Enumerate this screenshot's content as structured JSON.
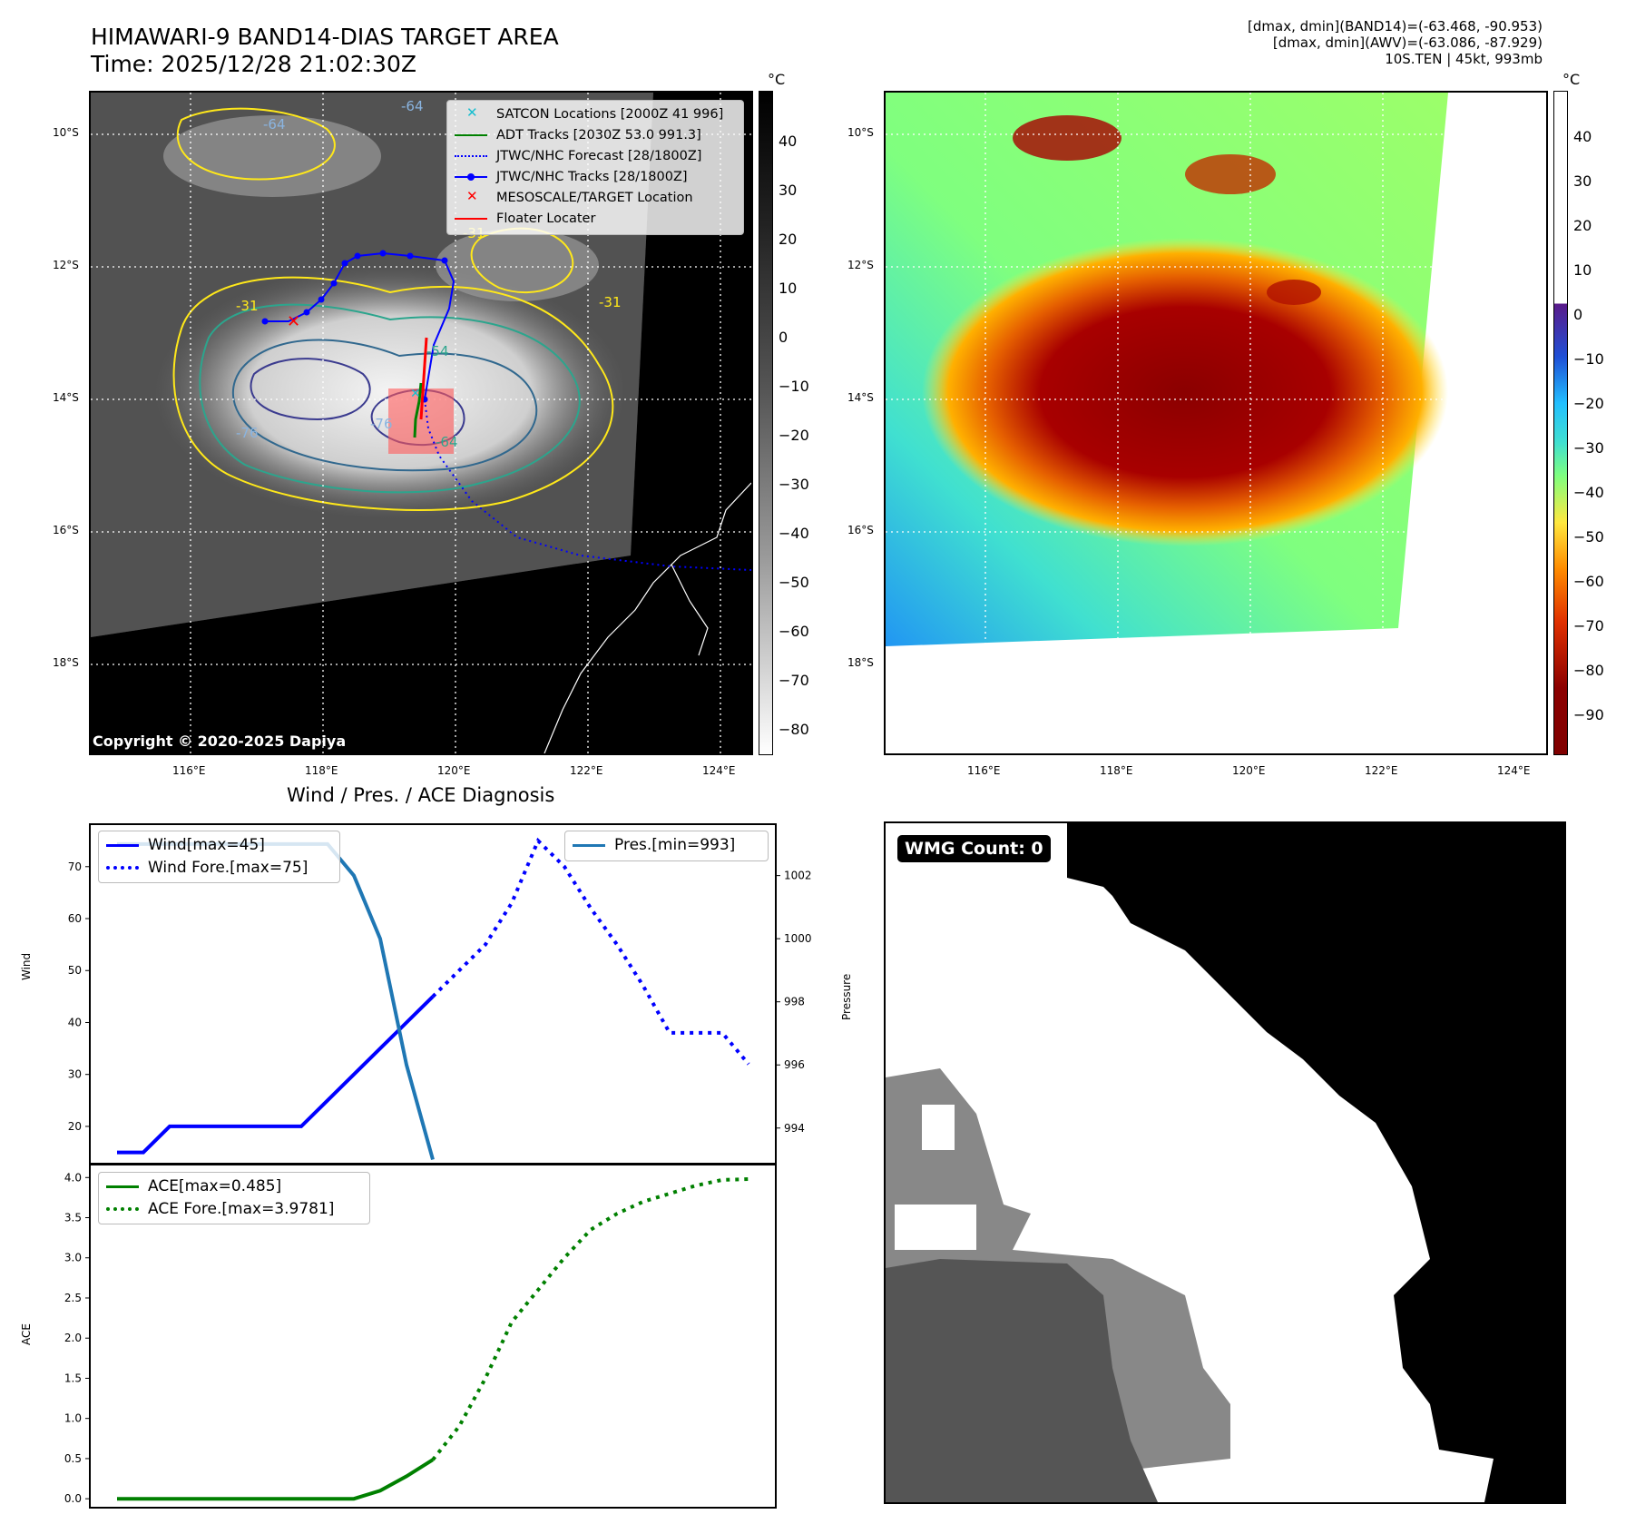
{
  "header": {
    "title_line1": "HIMAWARI-9 BAND14-DIAS TARGET AREA",
    "title_line2": "Time: 2025/12/28 21:02:30Z",
    "info_line1": "[dmax, dmin](BAND14)=(-63.468, -90.953)",
    "info_line2": "[dmax, dmin](AWV)=(-63.086, -87.929)",
    "info_line3": "10S.TEN | 45kt, 993mb"
  },
  "map": {
    "lat_labels": [
      "10°S",
      "12°S",
      "14°S",
      "16°S",
      "18°S"
    ],
    "lon_labels": [
      "116°E",
      "118°E",
      "120°E",
      "122°E",
      "124°E"
    ],
    "copyright": "Copyright © 2020-2025 Dapiya",
    "contour_labels": [
      "-76",
      "-76",
      "-64",
      "-64",
      "-54",
      "-64",
      "-31",
      "-31",
      "-31"
    ],
    "legend": [
      {
        "label": "SATCON Locations [2000Z 41 996]",
        "color": "#17becf",
        "style": "x-marker"
      },
      {
        "label": "ADT Tracks [2030Z 53.0 991.3]",
        "color": "#008000",
        "style": "line"
      },
      {
        "label": "JTWC/NHC Forecast [28/1800Z]",
        "color": "#0000ff",
        "style": "dotted"
      },
      {
        "label": "JTWC/NHC Tracks [28/1800Z]",
        "color": "#0000ff",
        "style": "line-dot"
      },
      {
        "label": "MESOSCALE/TARGET Location",
        "color": "#ff0000",
        "style": "x-marker"
      },
      {
        "label": "Floater Locater",
        "color": "#ff0000",
        "style": "line"
      }
    ]
  },
  "colorbar_left": {
    "unit": "°C",
    "ticks": [
      "40",
      "30",
      "20",
      "10",
      "0",
      "−10",
      "−20",
      "−30",
      "−40",
      "−50",
      "−60",
      "−70",
      "−80"
    ]
  },
  "colorbar_right": {
    "unit": "°C",
    "ticks": [
      "40",
      "30",
      "20",
      "10",
      "0",
      "−10",
      "−20",
      "−30",
      "−40",
      "−50",
      "−60",
      "−70",
      "−80",
      "−90"
    ]
  },
  "diag": {
    "title": "Wind / Pres. / ACE Diagnosis",
    "wind_ylabel": "Wind",
    "pres_ylabel": "Pressure",
    "ace_ylabel": "ACE",
    "wind_ticks": [
      "70",
      "60",
      "50",
      "40",
      "30",
      "20"
    ],
    "pres_ticks": [
      "1002",
      "1000",
      "998",
      "996",
      "994"
    ],
    "ace_ticks": [
      "4.0",
      "3.5",
      "3.0",
      "2.5",
      "2.0",
      "1.5",
      "1.0",
      "0.5",
      "0.0"
    ],
    "legend_wind": "Wind[max=45]",
    "legend_wind_fore": "Wind Fore.[max=75]",
    "legend_pres": "Pres.[min=993]",
    "legend_ace": "ACE[max=0.485]",
    "legend_ace_fore": "ACE Fore.[max=3.9781]"
  },
  "wmg": {
    "label": "WMG Count: 0"
  },
  "chart_data": [
    {
      "type": "line",
      "title": "Wind / Pres. / ACE Diagnosis",
      "ylabel": "Wind",
      "ylim": [
        13,
        78
      ],
      "series": [
        {
          "name": "Wind[max=45]",
          "x": [
            0,
            1,
            2,
            3,
            4,
            5,
            6,
            7,
            8,
            9,
            10,
            11,
            12,
            13
          ],
          "values": [
            15,
            15,
            20,
            20,
            20,
            20,
            20,
            20,
            25,
            30,
            35,
            40,
            45,
            null
          ],
          "color": "#0000ff",
          "style": "solid"
        },
        {
          "name": "Wind Fore.[max=75]",
          "x": [
            12,
            13,
            14,
            15,
            16,
            17,
            18,
            19,
            20,
            21,
            22,
            23,
            24
          ],
          "values": [
            45,
            50,
            55,
            63,
            75,
            70,
            62,
            55,
            47,
            38,
            38,
            38,
            32
          ],
          "color": "#0000ff",
          "style": "dotted"
        }
      ]
    },
    {
      "type": "line",
      "ylabel": "Pressure",
      "ylim": [
        992.9,
        1003.6
      ],
      "series": [
        {
          "name": "Pres.[min=993]",
          "x": [
            0,
            1,
            2,
            3,
            4,
            5,
            6,
            7,
            8,
            9,
            10,
            11,
            12
          ],
          "values": [
            1003,
            1003,
            1003,
            1003,
            1003,
            1003,
            1003,
            1003,
            1003,
            1002,
            1000,
            996,
            993
          ],
          "color": "#1f77b4",
          "style": "solid"
        }
      ]
    },
    {
      "type": "line",
      "ylabel": "ACE",
      "ylim": [
        -0.1,
        4.15
      ],
      "series": [
        {
          "name": "ACE[max=0.485]",
          "x": [
            0,
            1,
            2,
            3,
            4,
            5,
            6,
            7,
            8,
            9,
            10,
            11,
            12
          ],
          "values": [
            0,
            0,
            0,
            0,
            0,
            0,
            0,
            0,
            0,
            0,
            0.1,
            0.28,
            0.485
          ],
          "color": "#008000",
          "style": "solid"
        },
        {
          "name": "ACE Fore.[max=3.9781]",
          "x": [
            12,
            13,
            14,
            15,
            16,
            17,
            18,
            19,
            20,
            21,
            22,
            23,
            24
          ],
          "values": [
            0.485,
            0.9,
            1.5,
            2.2,
            2.6,
            3.0,
            3.35,
            3.55,
            3.7,
            3.8,
            3.9,
            3.97,
            3.98
          ],
          "color": "#008000",
          "style": "dotted"
        }
      ]
    }
  ]
}
